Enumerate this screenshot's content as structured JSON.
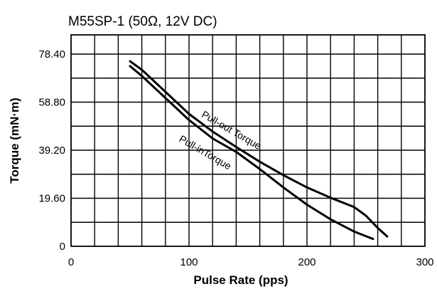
{
  "chart_data": {
    "type": "line",
    "title": "M55SP-1 (50Ω, 12V DC)",
    "xlabel": "Pulse Rate (pps)",
    "ylabel": "Torque (mN·m)",
    "xlim": [
      0,
      300
    ],
    "ylim": [
      0,
      86.24
    ],
    "x_ticks": [
      {
        "value": 0,
        "label": "0"
      },
      {
        "value": 100,
        "label": "100"
      },
      {
        "value": 200,
        "label": "200"
      },
      {
        "value": 300,
        "label": "300"
      }
    ],
    "y_ticks": [
      {
        "value": 0,
        "label": "0"
      },
      {
        "value": 19.6,
        "label": "19.60"
      },
      {
        "value": 39.2,
        "label": "39.20"
      },
      {
        "value": 58.8,
        "label": "58.80"
      },
      {
        "value": 78.4,
        "label": "78.40"
      }
    ],
    "grid": true,
    "grid_x_step": 20,
    "grid_y_step": 9.8,
    "series": [
      {
        "name": "Pull-out Torque",
        "x": [
          50,
          60,
          80,
          100,
          120,
          140,
          160,
          180,
          200,
          220,
          240,
          250,
          260,
          268
        ],
        "y": [
          75.5,
          72.0,
          63.0,
          54.0,
          46.8,
          40.5,
          34.5,
          29.0,
          24.0,
          19.8,
          16.0,
          12.5,
          7.5,
          4.0
        ]
      },
      {
        "name": "Pull-inTorque",
        "x": [
          50,
          60,
          80,
          100,
          120,
          140,
          160,
          180,
          200,
          220,
          240,
          256
        ],
        "y": [
          73.5,
          69.5,
          60.5,
          51.5,
          44.0,
          38.5,
          31.5,
          24.0,
          17.0,
          11.0,
          6.0,
          3.0
        ]
      }
    ],
    "annotations": [
      {
        "text": "Pull-out Torque",
        "series": "Pull-out Torque"
      },
      {
        "text": "Pull-inTorque",
        "series": "Pull-inTorque"
      }
    ]
  }
}
